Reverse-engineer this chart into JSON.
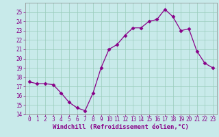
{
  "x": [
    0,
    1,
    2,
    3,
    4,
    5,
    6,
    7,
    8,
    9,
    10,
    11,
    12,
    13,
    14,
    15,
    16,
    17,
    18,
    19,
    20,
    21,
    22,
    23
  ],
  "y": [
    17.5,
    17.3,
    17.3,
    17.2,
    16.3,
    15.3,
    14.7,
    14.4,
    16.3,
    19.0,
    21.0,
    21.5,
    22.5,
    23.3,
    23.3,
    24.0,
    24.2,
    25.3,
    24.5,
    23.0,
    23.2,
    20.8,
    19.5,
    19.0
  ],
  "line_color": "#880088",
  "marker": "D",
  "marker_size": 2.5,
  "marker_color": "#880088",
  "background_color": "#c8eaea",
  "grid_color": "#99ccbb",
  "ylim": [
    14,
    26
  ],
  "xlim": [
    -0.5,
    23.5
  ],
  "yticks": [
    14,
    15,
    16,
    17,
    18,
    19,
    20,
    21,
    22,
    23,
    24,
    25
  ],
  "xticks": [
    0,
    1,
    2,
    3,
    4,
    5,
    6,
    7,
    8,
    9,
    10,
    11,
    12,
    13,
    14,
    15,
    16,
    17,
    18,
    19,
    20,
    21,
    22,
    23
  ],
  "xlabel": "Windchill (Refroidissement éolien,°C)",
  "xlabel_fontsize": 6.5,
  "tick_fontsize": 5.5,
  "tick_color": "#880088",
  "axis_color": "#880088",
  "spine_color": "#888888"
}
